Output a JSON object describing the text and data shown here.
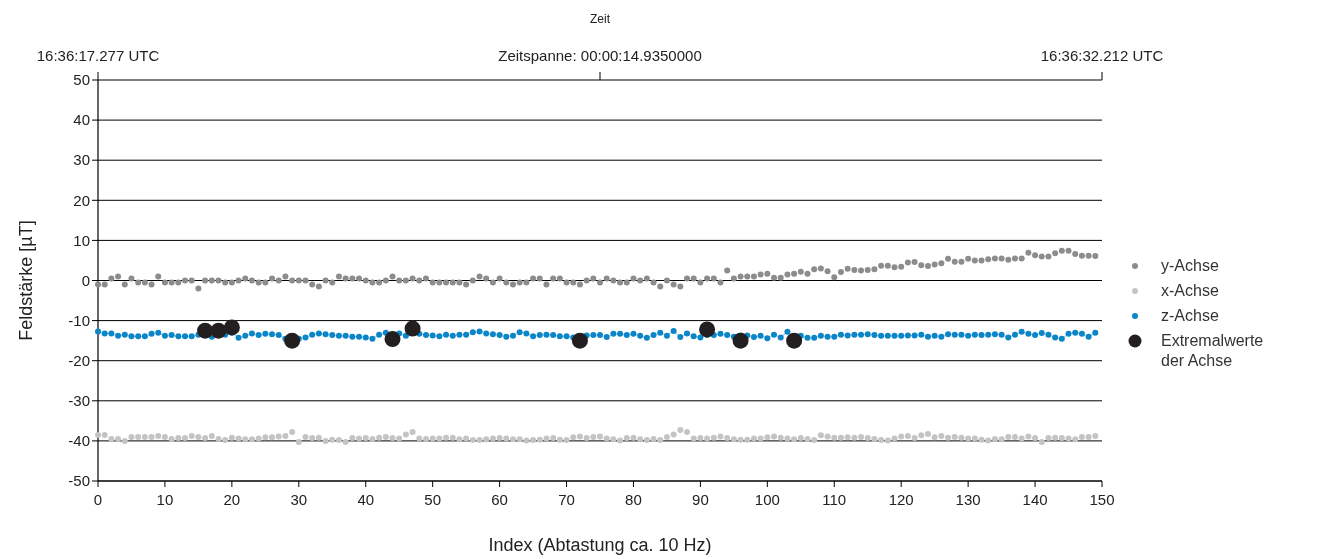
{
  "chart_data": {
    "type": "scatter",
    "x2label": "Zeit",
    "annotations": [
      "16:36:17.277 UTC",
      "Zeitspanne: 00:00:14.9350000",
      "16:36:32.212 UTC"
    ],
    "xlabel": "Index (Abtastung ca. 10 Hz)",
    "ylabel": "Feldstärke [µT]",
    "xlim": [
      0,
      150
    ],
    "xticks": [
      0,
      10,
      20,
      30,
      40,
      50,
      60,
      70,
      80,
      90,
      100,
      110,
      120,
      130,
      140,
      150
    ],
    "ylim": [
      -50,
      50
    ],
    "yticks": [
      -50,
      -40,
      -30,
      -20,
      -10,
      0,
      10,
      20,
      30,
      40,
      50
    ],
    "grid": "y",
    "legend": "right",
    "marker": "circle",
    "x": [
      0,
      1,
      2,
      3,
      4,
      5,
      6,
      7,
      8,
      9,
      10,
      11,
      12,
      13,
      14,
      15,
      16,
      17,
      18,
      19,
      20,
      21,
      22,
      23,
      24,
      25,
      26,
      27,
      28,
      29,
      30,
      31,
      32,
      33,
      34,
      35,
      36,
      37,
      38,
      39,
      40,
      41,
      42,
      43,
      44,
      45,
      46,
      47,
      48,
      49,
      50,
      51,
      52,
      53,
      54,
      55,
      56,
      57,
      58,
      59,
      60,
      61,
      62,
      63,
      64,
      65,
      66,
      67,
      68,
      69,
      70,
      71,
      72,
      73,
      74,
      75,
      76,
      77,
      78,
      79,
      80,
      81,
      82,
      83,
      84,
      85,
      86,
      87,
      88,
      89,
      90,
      91,
      92,
      93,
      94,
      95,
      96,
      97,
      98,
      99,
      100,
      101,
      102,
      103,
      104,
      105,
      106,
      107,
      108,
      109,
      110,
      111,
      112,
      113,
      114,
      115,
      116,
      117,
      118,
      119,
      120,
      121,
      122,
      123,
      124,
      125,
      126,
      127,
      128,
      129,
      130,
      131,
      132,
      133,
      134,
      135,
      136,
      137,
      138,
      139,
      140,
      141,
      142,
      143,
      144,
      145,
      146,
      147,
      148,
      149
    ],
    "series": [
      {
        "name": "y-Achse",
        "color": "#8c8c8c",
        "values": [
          -1,
          -1,
          0.5,
          1,
          -1,
          0.5,
          -0.5,
          -0.5,
          -1,
          1,
          -0.5,
          -0.5,
          -0.5,
          0,
          0,
          -2,
          0,
          0,
          0,
          -0.5,
          -0.5,
          0,
          0.5,
          0,
          -0.5,
          -0.5,
          0.5,
          0,
          1,
          0,
          0,
          0,
          -1,
          -1.5,
          0,
          -0.5,
          1,
          0.5,
          0.5,
          0.5,
          0,
          -0.5,
          -0.5,
          0,
          1,
          0,
          0,
          0.5,
          0,
          0.5,
          -0.5,
          -0.5,
          -0.5,
          -0.5,
          -0.5,
          -1,
          0,
          1,
          0.5,
          -0.5,
          0.5,
          -0.5,
          -1,
          -0.5,
          -0.5,
          0.5,
          0.5,
          -1,
          0.5,
          0.5,
          -0.5,
          -0.5,
          -1,
          0,
          0.5,
          -0.5,
          0.5,
          0,
          -0.5,
          -0.5,
          0.5,
          0,
          0.5,
          -0.5,
          -1.5,
          0,
          -1,
          -1.5,
          0.5,
          0.5,
          -0.5,
          0.5,
          0.5,
          -0.5,
          2.5,
          0.5,
          1,
          1,
          1,
          1.5,
          1.7,
          0.7,
          0.7,
          1.5,
          1.7,
          2.2,
          1.7,
          2.8,
          3,
          2.3,
          0.8,
          2.1,
          2.9,
          2.6,
          2.5,
          2.6,
          2.8,
          3.7,
          3.7,
          3.3,
          3.4,
          4.5,
          4.6,
          3.8,
          3.6,
          4,
          4.3,
          5.4,
          4.7,
          4.7,
          5.4,
          5,
          5,
          5.3,
          5.5,
          5.5,
          5.2,
          5.5,
          5.5,
          6.9,
          6.3,
          6,
          6,
          6.8,
          7.4,
          7.4,
          6.6,
          6.2,
          6.2,
          6.1
        ]
      },
      {
        "name": "x-Achse",
        "color": "#c4c4c4",
        "values": [
          -38.5,
          -38.5,
          -39.5,
          -39.5,
          -40,
          -39,
          -39,
          -39,
          -39,
          -38.8,
          -39,
          -39.5,
          -39.3,
          -39.3,
          -38.8,
          -39,
          -39.3,
          -38.8,
          -39.5,
          -39.8,
          -39.2,
          -39.4,
          -39.6,
          -39.6,
          -39.4,
          -39.1,
          -39.1,
          -38.9,
          -38.8,
          -37.8,
          -40.3,
          -39,
          -39.3,
          -39.2,
          -40,
          -39.7,
          -39.8,
          -40.3,
          -39.3,
          -39.4,
          -39.3,
          -39.5,
          -39.2,
          -39,
          -39.3,
          -39.4,
          -38.4,
          -37.8,
          -39.4,
          -39.5,
          -39.4,
          -39.4,
          -39.2,
          -39.2,
          -39.6,
          -39.4,
          -39.8,
          -39.8,
          -39.6,
          -39.4,
          -39.3,
          -39.4,
          -39.6,
          -39.6,
          -39.9,
          -39.8,
          -39.7,
          -39.4,
          -39.3,
          -39.7,
          -39.8,
          -39.1,
          -38.9,
          -39.3,
          -39,
          -38.9,
          -39.4,
          -39.6,
          -39.9,
          -39.3,
          -39.2,
          -39.6,
          -39.8,
          -39.5,
          -39.8,
          -39,
          -38.4,
          -37.3,
          -37.8,
          -39.4,
          -39.3,
          -39.4,
          -39.2,
          -38.9,
          -39.3,
          -39.6,
          -39.7,
          -39.7,
          -39.4,
          -39.4,
          -39.1,
          -38.9,
          -39.2,
          -39.4,
          -39.6,
          -39.3,
          -39.5,
          -39.8,
          -38.6,
          -38.9,
          -39.2,
          -39.2,
          -39.1,
          -39.2,
          -39,
          -39.3,
          -39.5,
          -39.8,
          -39.9,
          -39.4,
          -38.9,
          -38.8,
          -39.3,
          -38.6,
          -38.3,
          -39.1,
          -38.8,
          -39.2,
          -39,
          -39.2,
          -39.4,
          -39.4,
          -39.7,
          -39.9,
          -39.5,
          -39.6,
          -39,
          -39,
          -39.4,
          -38.9,
          -39.3,
          -40.3,
          -39.3,
          -39.2,
          -39.3,
          -39.4,
          -39.6,
          -39,
          -39,
          -38.8
        ]
      },
      {
        "name": "z-Achse",
        "type": "line",
        "color": "#0a86c8",
        "values": [
          -12.7,
          -13.2,
          -13.2,
          -13.8,
          -13.5,
          -13.9,
          -13.9,
          -13.9,
          -13.3,
          -13,
          -13.8,
          -13.6,
          -13.9,
          -13.9,
          -13.9,
          -13.5,
          -13.2,
          -14,
          -13.2,
          -13.5,
          -13,
          -14.3,
          -13.8,
          -13.2,
          -13.6,
          -13.3,
          -13.4,
          -13.6,
          -14.5,
          null,
          -14.5,
          -14.2,
          -13.5,
          -13.2,
          -13.4,
          -13.6,
          -13.8,
          -13.8,
          -14,
          -14,
          -14.2,
          -14.5,
          -13.5,
          -13,
          null,
          -13.2,
          -13.8,
          -12.8,
          -13.3,
          -13.6,
          -13.7,
          -13.9,
          -13.5,
          -13.8,
          -13.5,
          -13.5,
          -12.9,
          -12.7,
          -13.2,
          -13.4,
          -13.6,
          -14,
          -13.8,
          -12.9,
          -13.2,
          -13.9,
          -13.6,
          -13.5,
          -13.6,
          -13.9,
          -13.9,
          -14.2,
          null,
          -13.7,
          -13.6,
          -13.6,
          -14.1,
          -13.3,
          -13.3,
          -13.6,
          -13.3,
          -13.8,
          -14.3,
          -13.6,
          -13,
          -13.8,
          -12.6,
          -14.1,
          -13.2,
          -13.9,
          -14.2,
          -13.6,
          -13.6,
          -13.3,
          -13.6,
          -14,
          -13.7,
          -13.7,
          -14.1,
          -13.8,
          -14.4,
          -13.5,
          -14.2,
          -12.8,
          null,
          -13.8,
          -14.3,
          -14.3,
          -13.8,
          -14,
          -14,
          -13.5,
          -13.7,
          -13.5,
          -13.5,
          -13.4,
          -13.6,
          -13.8,
          -13.8,
          -13.8,
          -13.8,
          -13.7,
          -13.7,
          -13.5,
          -14,
          -13.8,
          -14,
          -13.4,
          -13.5,
          -13.5,
          -13.8,
          -13.5,
          -13.6,
          -13.5,
          -13.4,
          -13.5,
          -14.2,
          -13.5,
          -12.8,
          -13.3,
          -13.6,
          -13.1,
          -13.5,
          -14.2,
          -14.5,
          -13.3,
          -13,
          -13.3,
          -14,
          -13
        ]
      },
      {
        "name": "Extremalwerte der Achse",
        "color": "#231f20",
        "x": [
          16,
          18,
          20,
          29,
          44,
          47,
          72,
          91,
          96,
          104
        ],
        "values": [
          -12.5,
          -12.5,
          -11.7,
          -15,
          -14.6,
          -12,
          -15,
          -12.2,
          -15,
          -15
        ]
      }
    ]
  }
}
